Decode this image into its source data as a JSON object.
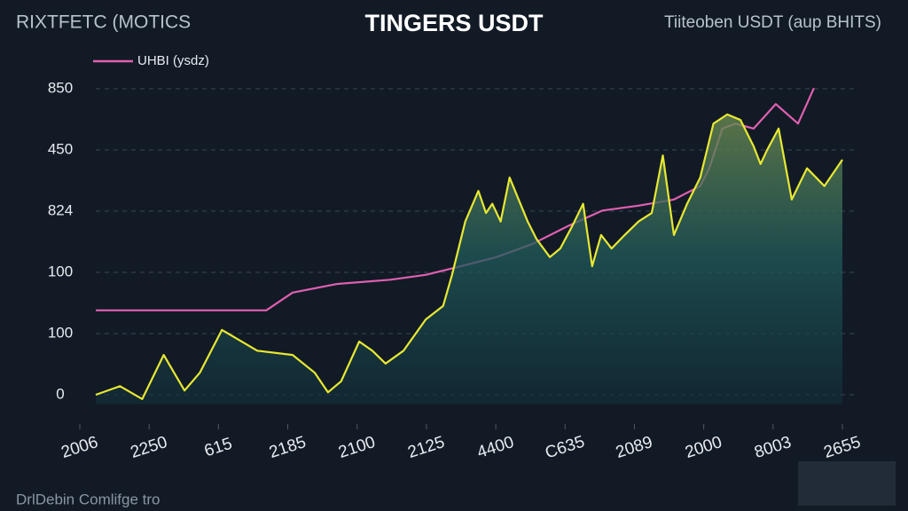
{
  "chart_data": {
    "type": "line",
    "title": "TINGERS USDT",
    "subtitle": "RIXTFETC (MOTICS",
    "annotations": [
      "Tiiteoben USDT (aup BHITS)",
      "DrlDebin Comlifge tro"
    ],
    "grid": true,
    "legend": "top-left",
    "xlim": [
      0,
      11
    ],
    "ylim": [
      -0.3,
      5.3
    ],
    "yticks": [
      0,
      {
        "value": 1,
        "label": "100"
      },
      {
        "value": 2,
        "label": "100"
      },
      {
        "value": 3,
        "label": "824"
      },
      {
        "value": 4,
        "label": "450"
      },
      {
        "value": 5,
        "label": "850"
      }
    ],
    "xticks": [
      {
        "value": 0,
        "label": "2006"
      },
      {
        "value": 1,
        "label": "2250"
      },
      {
        "value": 2,
        "label": "615"
      },
      {
        "value": 3,
        "label": "2185"
      },
      {
        "value": 4,
        "label": "2100"
      },
      {
        "value": 5,
        "label": "2125"
      },
      {
        "value": 6,
        "label": "4400"
      },
      {
        "value": 7,
        "label": "C635"
      },
      {
        "value": 8,
        "label": "2089"
      },
      {
        "value": 9,
        "label": "2000"
      },
      {
        "value": 10,
        "label": "8003"
      },
      {
        "value": 11,
        "label": "2655"
      }
    ],
    "series": [
      {
        "name": "UHBI (ysdz)",
        "color": "#e060b0",
        "x": [
          0.23,
          2.69,
          3.07,
          3.71,
          4.48,
          4.99,
          5.5,
          6.01,
          6.52,
          7.03,
          7.54,
          8.06,
          8.57,
          8.95,
          9.08,
          9.27,
          9.46,
          9.72,
          10.04,
          10.36,
          10.59
        ],
        "values": [
          1.38,
          1.38,
          1.67,
          1.81,
          1.88,
          1.96,
          2.1,
          2.25,
          2.46,
          2.75,
          3.01,
          3.09,
          3.19,
          3.41,
          3.7,
          4.35,
          4.43,
          4.35,
          4.75,
          4.43,
          5.01
        ]
      },
      {
        "color": "#e8e832",
        "area": true,
        "x": [
          0.23,
          0.58,
          0.9,
          1.21,
          1.51,
          1.73,
          2.05,
          2.56,
          3.07,
          3.39,
          3.58,
          3.77,
          4.03,
          4.22,
          4.41,
          4.67,
          4.99,
          5.24,
          5.37,
          5.56,
          5.75,
          5.86,
          5.95,
          6.07,
          6.2,
          6.33,
          6.46,
          6.59,
          6.78,
          6.93,
          7.1,
          7.26,
          7.39,
          7.52,
          7.67,
          7.86,
          8.06,
          8.25,
          8.41,
          8.57,
          8.76,
          8.95,
          9.14,
          9.34,
          9.53,
          9.72,
          9.82,
          9.91,
          10.08,
          10.27,
          10.49,
          10.74,
          11
        ],
        "values": [
          0,
          0.14,
          -0.07,
          0.65,
          0.07,
          0.36,
          1.06,
          0.72,
          0.65,
          0.36,
          0.04,
          0.22,
          0.87,
          0.72,
          0.51,
          0.72,
          1.23,
          1.45,
          1.96,
          2.83,
          3.33,
          2.97,
          3.12,
          2.83,
          3.55,
          3.19,
          2.83,
          2.54,
          2.25,
          2.39,
          2.75,
          3.12,
          2.1,
          2.61,
          2.39,
          2.61,
          2.83,
          2.97,
          3.91,
          2.61,
          3.12,
          3.55,
          4.43,
          4.58,
          4.49,
          4.06,
          3.77,
          3.99,
          4.35,
          3.19,
          3.7,
          3.41,
          3.84
        ]
      }
    ]
  }
}
